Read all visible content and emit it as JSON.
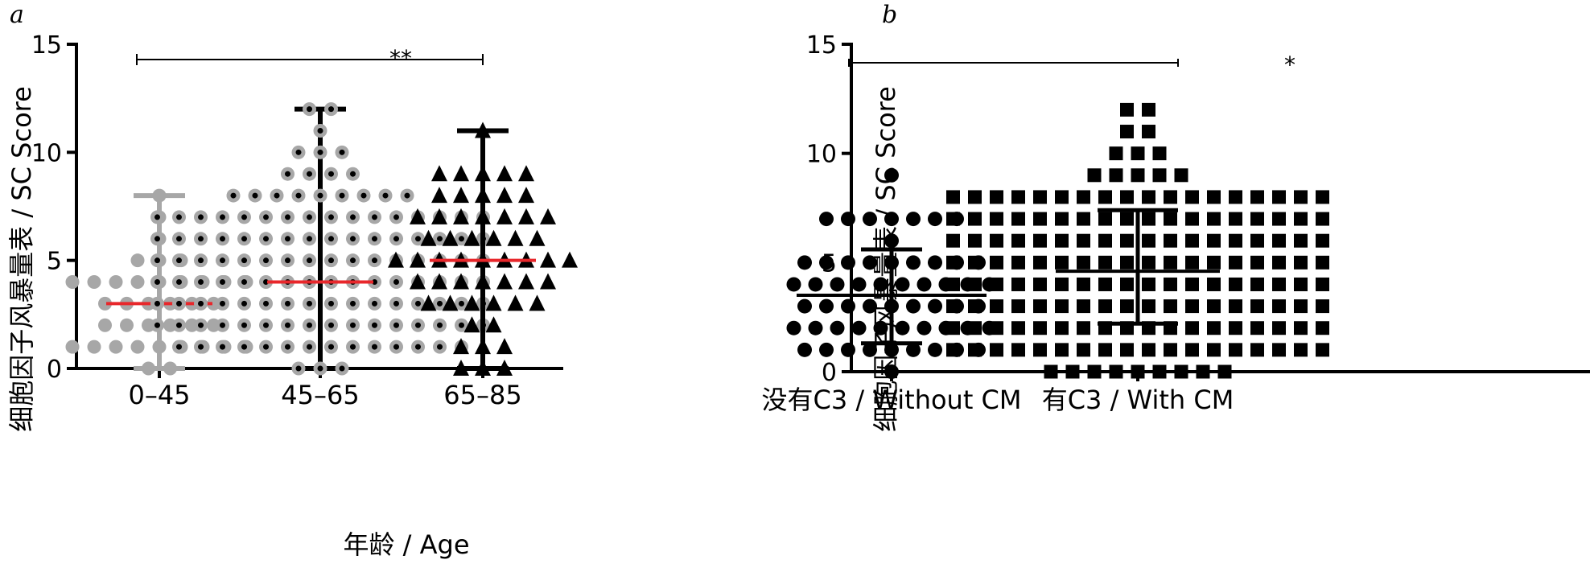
{
  "chart_data": [
    {
      "panel_label": "a",
      "type": "scatter",
      "subtype": "dot-plot with mean/median line and range whiskers",
      "ylabel": "细胞因子风暴量表 / SC Score",
      "xlabel": "年龄 / Age",
      "ylim": [
        0,
        15
      ],
      "yticks": [
        "0",
        "5",
        "10",
        "15"
      ],
      "categories": [
        "0–45",
        "45–65",
        "65–85"
      ],
      "significance": {
        "label": "**",
        "from": "0–45",
        "to": "65–85"
      },
      "center_line_color": "#e8272b",
      "groups": [
        {
          "category": "0–45",
          "marker": "circle",
          "color": "#a7a7a7",
          "center": 3,
          "range": [
            0,
            8
          ],
          "values": [
            0,
            0,
            1,
            1,
            1,
            1,
            1,
            1,
            1,
            1,
            1,
            2,
            2,
            2,
            2,
            2,
            2,
            3,
            3,
            3,
            3,
            3,
            3,
            4,
            4,
            4,
            4,
            4,
            4,
            4,
            4,
            4,
            5,
            5,
            5,
            6,
            7,
            8
          ]
        },
        {
          "category": "45–65",
          "marker": "circle-dot",
          "color": "#a7a7a7",
          "center": 4,
          "range": [
            0,
            12
          ],
          "values": [
            0,
            0,
            0,
            1,
            1,
            1,
            1,
            1,
            1,
            1,
            1,
            1,
            1,
            1,
            1,
            1,
            1,
            2,
            2,
            2,
            2,
            2,
            2,
            2,
            2,
            2,
            2,
            2,
            2,
            2,
            2,
            2,
            2,
            3,
            3,
            3,
            3,
            3,
            3,
            3,
            3,
            3,
            3,
            3,
            3,
            3,
            3,
            3,
            3,
            4,
            4,
            4,
            4,
            4,
            4,
            4,
            4,
            4,
            4,
            4,
            4,
            4,
            4,
            4,
            4,
            5,
            5,
            5,
            5,
            5,
            5,
            5,
            5,
            5,
            5,
            5,
            5,
            5,
            5,
            5,
            5,
            6,
            6,
            6,
            6,
            6,
            6,
            6,
            6,
            6,
            6,
            6,
            6,
            6,
            6,
            6,
            6,
            7,
            7,
            7,
            7,
            7,
            7,
            7,
            7,
            7,
            7,
            7,
            7,
            7,
            7,
            7,
            7,
            8,
            8,
            8,
            8,
            8,
            8,
            8,
            8,
            8,
            9,
            9,
            9,
            9,
            10,
            10,
            10,
            11,
            12,
            12
          ]
        },
        {
          "category": "65–85",
          "marker": "triangle",
          "color": "#000000",
          "center": 5,
          "range": [
            0,
            11
          ],
          "values": [
            0,
            0,
            0,
            1,
            1,
            1,
            2,
            2,
            3,
            3,
            3,
            3,
            3,
            3,
            4,
            4,
            4,
            4,
            4,
            4,
            4,
            5,
            5,
            5,
            5,
            5,
            5,
            5,
            5,
            5,
            6,
            6,
            6,
            6,
            6,
            6,
            7,
            7,
            7,
            7,
            7,
            7,
            7,
            8,
            8,
            8,
            8,
            8,
            9,
            9,
            9,
            9,
            9,
            11
          ]
        }
      ]
    },
    {
      "panel_label": "b",
      "type": "scatter",
      "subtype": "dot-plot with mean and SD error bars",
      "ylabel": "细胞因子风暴量表 / SC Score",
      "xlabel": "",
      "ylim": [
        0,
        15
      ],
      "yticks": [
        "0",
        "5",
        "10",
        "15"
      ],
      "categories": [
        "没有C3 / Without CM",
        "有C3 / With CM"
      ],
      "significance": {
        "label": "*",
        "from": "没有C3 / Without CM",
        "to": "有C3 / With CM"
      },
      "groups": [
        {
          "category": "没有C3 / Without CM",
          "marker": "circle",
          "color": "#000000",
          "center": 3.5,
          "error": [
            1.3,
            5.6
          ],
          "values": [
            0,
            1,
            1,
            1,
            1,
            1,
            1,
            1,
            1,
            1,
            2,
            2,
            2,
            2,
            2,
            2,
            2,
            2,
            2,
            2,
            3,
            3,
            3,
            3,
            3,
            3,
            3,
            3,
            3,
            4,
            4,
            4,
            4,
            4,
            4,
            4,
            4,
            4,
            4,
            5,
            5,
            5,
            5,
            5,
            5,
            5,
            5,
            5,
            6,
            7,
            7,
            7,
            7,
            7,
            7,
            7,
            9
          ]
        },
        {
          "category": "有C3 / With CM",
          "marker": "square",
          "color": "#000000",
          "center": 4.6,
          "error": [
            2.2,
            7.4
          ],
          "values": [
            0,
            0,
            0,
            0,
            0,
            0,
            0,
            0,
            0,
            1,
            1,
            1,
            1,
            1,
            1,
            1,
            1,
            1,
            1,
            1,
            1,
            1,
            1,
            1,
            1,
            1,
            1,
            2,
            2,
            2,
            2,
            2,
            2,
            2,
            2,
            2,
            2,
            2,
            2,
            2,
            2,
            2,
            2,
            2,
            2,
            3,
            3,
            3,
            3,
            3,
            3,
            3,
            3,
            3,
            3,
            3,
            3,
            3,
            3,
            3,
            3,
            3,
            3,
            4,
            4,
            4,
            4,
            4,
            4,
            4,
            4,
            4,
            4,
            4,
            4,
            4,
            4,
            4,
            4,
            4,
            4,
            5,
            5,
            5,
            5,
            5,
            5,
            5,
            5,
            5,
            5,
            5,
            5,
            5,
            5,
            5,
            5,
            5,
            5,
            6,
            6,
            6,
            6,
            6,
            6,
            6,
            6,
            6,
            6,
            6,
            6,
            6,
            6,
            6,
            6,
            6,
            6,
            7,
            7,
            7,
            7,
            7,
            7,
            7,
            7,
            7,
            7,
            7,
            7,
            7,
            7,
            7,
            7,
            7,
            7,
            8,
            8,
            8,
            8,
            8,
            8,
            8,
            8,
            8,
            8,
            8,
            8,
            8,
            8,
            8,
            8,
            8,
            8,
            9,
            9,
            9,
            9,
            9,
            10,
            10,
            10,
            11,
            11,
            12,
            12
          ]
        }
      ]
    }
  ]
}
